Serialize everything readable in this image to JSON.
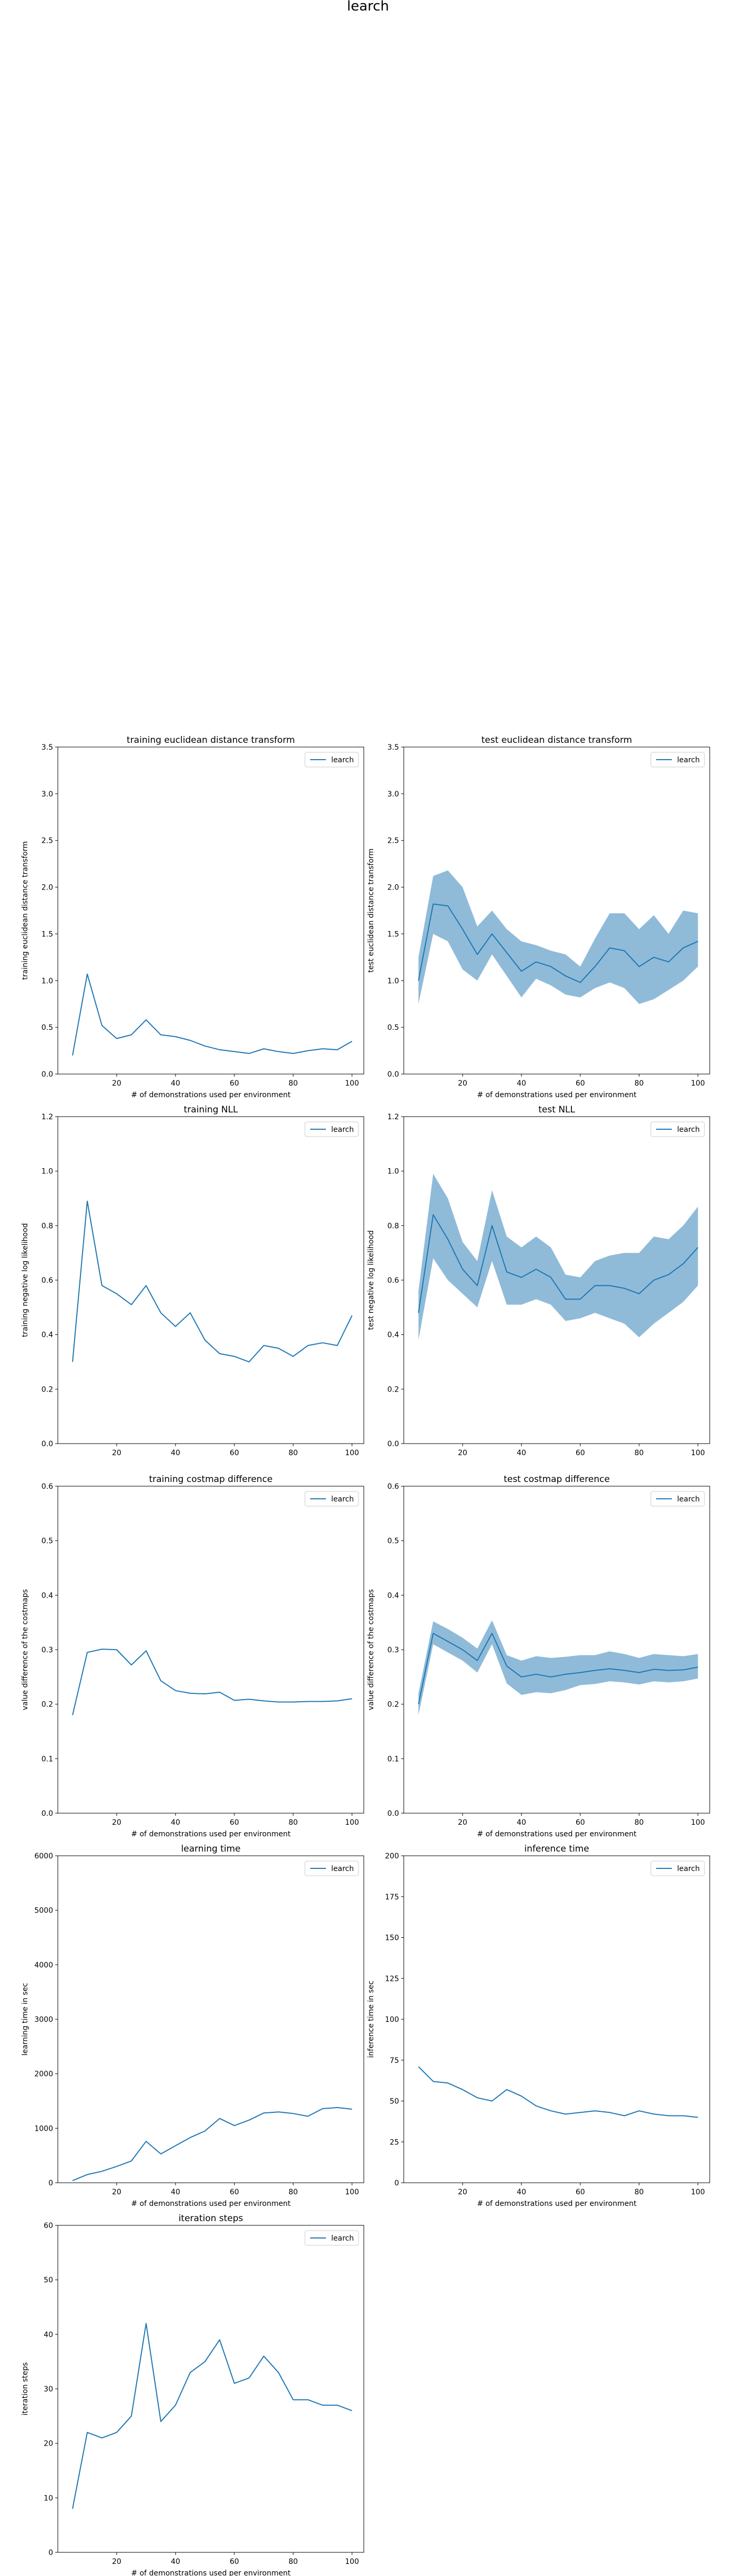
{
  "figure": {
    "suptitle": "learch"
  },
  "colors": {
    "line": "#1f77b4",
    "band": "#1f77b4"
  },
  "chart_data": [
    {
      "type": "line",
      "title": "training euclidean distance transform",
      "xlabel": "# of demonstrations used per environment",
      "ylabel": "training euclidean distance transform",
      "xlim": [
        0,
        104
      ],
      "ylim": [
        0,
        3.5
      ],
      "xticks": [
        20,
        40,
        60,
        80,
        100
      ],
      "yticks": [
        0.0,
        0.5,
        1.0,
        1.5,
        2.0,
        2.5,
        3.0,
        3.5
      ],
      "ytick_decimals": 1,
      "legend": "top-right",
      "series": [
        {
          "name": "learch",
          "x": [
            5,
            10,
            15,
            20,
            25,
            30,
            35,
            40,
            45,
            50,
            55,
            60,
            65,
            70,
            75,
            80,
            85,
            90,
            95,
            100
          ],
          "y": [
            0.2,
            1.07,
            0.52,
            0.38,
            0.42,
            0.58,
            0.42,
            0.4,
            0.36,
            0.3,
            0.26,
            0.24,
            0.22,
            0.27,
            0.24,
            0.22,
            0.25,
            0.27,
            0.26,
            0.35
          ]
        }
      ]
    },
    {
      "type": "line",
      "title": "test euclidean distance transform",
      "xlabel": "# of demonstrations used per environment",
      "ylabel": "test euclidean distance transform",
      "xlim": [
        0,
        104
      ],
      "ylim": [
        0,
        3.5
      ],
      "xticks": [
        20,
        40,
        60,
        80,
        100
      ],
      "yticks": [
        0.0,
        0.5,
        1.0,
        1.5,
        2.0,
        2.5,
        3.0,
        3.5
      ],
      "ytick_decimals": 1,
      "legend": "top-right",
      "series": [
        {
          "name": "learch",
          "x": [
            5,
            10,
            15,
            20,
            25,
            30,
            35,
            40,
            45,
            50,
            55,
            60,
            65,
            70,
            75,
            80,
            85,
            90,
            95,
            100
          ],
          "y": [
            1.0,
            1.82,
            1.8,
            1.55,
            1.28,
            1.5,
            1.3,
            1.1,
            1.2,
            1.15,
            1.05,
            0.98,
            1.15,
            1.35,
            1.32,
            1.15,
            1.25,
            1.2,
            1.35,
            1.42
          ],
          "lower": [
            0.75,
            1.5,
            1.42,
            1.12,
            1.0,
            1.28,
            1.05,
            0.82,
            1.02,
            0.95,
            0.85,
            0.82,
            0.92,
            0.98,
            0.92,
            0.75,
            0.8,
            0.9,
            1.0,
            1.15
          ],
          "upper": [
            1.25,
            2.12,
            2.18,
            2.0,
            1.58,
            1.75,
            1.55,
            1.42,
            1.38,
            1.32,
            1.28,
            1.15,
            1.45,
            1.72,
            1.72,
            1.55,
            1.7,
            1.5,
            1.75,
            1.72
          ]
        }
      ]
    },
    {
      "type": "line",
      "title": "training NLL",
      "xlabel": "",
      "ylabel": "training negative log likelihood",
      "xlim": [
        0,
        104
      ],
      "ylim": [
        0,
        1.2
      ],
      "xticks": [
        20,
        40,
        60,
        80,
        100
      ],
      "yticks": [
        0.0,
        0.2,
        0.4,
        0.6,
        0.8,
        1.0,
        1.2
      ],
      "ytick_decimals": 1,
      "legend": "top-right",
      "series": [
        {
          "name": "learch",
          "x": [
            5,
            10,
            15,
            20,
            25,
            30,
            35,
            40,
            45,
            50,
            55,
            60,
            65,
            70,
            75,
            80,
            85,
            90,
            95,
            100
          ],
          "y": [
            0.3,
            0.89,
            0.58,
            0.55,
            0.51,
            0.58,
            0.48,
            0.43,
            0.48,
            0.38,
            0.33,
            0.32,
            0.3,
            0.36,
            0.35,
            0.32,
            0.36,
            0.37,
            0.36,
            0.47
          ]
        }
      ]
    },
    {
      "type": "line",
      "title": "test NLL",
      "xlabel": "",
      "ylabel": "test negative log likelihood",
      "xlim": [
        0,
        104
      ],
      "ylim": [
        0,
        1.2
      ],
      "xticks": [
        20,
        40,
        60,
        80,
        100
      ],
      "yticks": [
        0.0,
        0.2,
        0.4,
        0.6,
        0.8,
        1.0,
        1.2
      ],
      "ytick_decimals": 1,
      "legend": "top-right",
      "series": [
        {
          "name": "learch",
          "x": [
            5,
            10,
            15,
            20,
            25,
            30,
            35,
            40,
            45,
            50,
            55,
            60,
            65,
            70,
            75,
            80,
            85,
            90,
            95,
            100
          ],
          "y": [
            0.48,
            0.84,
            0.75,
            0.64,
            0.58,
            0.8,
            0.63,
            0.61,
            0.64,
            0.61,
            0.53,
            0.53,
            0.58,
            0.58,
            0.57,
            0.55,
            0.6,
            0.62,
            0.66,
            0.72
          ],
          "lower": [
            0.38,
            0.68,
            0.6,
            0.55,
            0.5,
            0.67,
            0.51,
            0.51,
            0.53,
            0.51,
            0.45,
            0.46,
            0.48,
            0.46,
            0.44,
            0.39,
            0.44,
            0.48,
            0.52,
            0.58
          ],
          "upper": [
            0.56,
            0.99,
            0.9,
            0.74,
            0.67,
            0.93,
            0.76,
            0.72,
            0.76,
            0.72,
            0.62,
            0.61,
            0.67,
            0.69,
            0.7,
            0.7,
            0.76,
            0.75,
            0.8,
            0.87
          ]
        }
      ]
    },
    {
      "type": "line",
      "title": "training costmap difference",
      "xlabel": "# of demonstrations used per environment",
      "ylabel": "value difference of the costmaps",
      "xlim": [
        0,
        104
      ],
      "ylim": [
        0,
        0.6
      ],
      "xticks": [
        20,
        40,
        60,
        80,
        100
      ],
      "yticks": [
        0.0,
        0.1,
        0.2,
        0.3,
        0.4,
        0.5,
        0.6
      ],
      "ytick_decimals": 1,
      "legend": "top-right",
      "series": [
        {
          "name": "learch",
          "x": [
            5,
            10,
            15,
            20,
            25,
            30,
            35,
            40,
            45,
            50,
            55,
            60,
            65,
            70,
            75,
            80,
            85,
            90,
            95,
            100
          ],
          "y": [
            0.18,
            0.295,
            0.301,
            0.3,
            0.272,
            0.298,
            0.243,
            0.225,
            0.22,
            0.219,
            0.222,
            0.207,
            0.209,
            0.206,
            0.204,
            0.204,
            0.205,
            0.205,
            0.206,
            0.21
          ]
        }
      ]
    },
    {
      "type": "line",
      "title": "test costmap difference",
      "xlabel": "# of demonstrations used per environment",
      "ylabel": "value difference of the costmaps",
      "xlim": [
        0,
        104
      ],
      "ylim": [
        0,
        0.6
      ],
      "xticks": [
        20,
        40,
        60,
        80,
        100
      ],
      "yticks": [
        0.0,
        0.1,
        0.2,
        0.3,
        0.4,
        0.5,
        0.6
      ],
      "ytick_decimals": 1,
      "legend": "top-right",
      "series": [
        {
          "name": "learch",
          "x": [
            5,
            10,
            15,
            20,
            25,
            30,
            35,
            40,
            45,
            50,
            55,
            60,
            65,
            70,
            75,
            80,
            85,
            90,
            95,
            100
          ],
          "y": [
            0.2,
            0.33,
            0.315,
            0.3,
            0.28,
            0.33,
            0.27,
            0.25,
            0.255,
            0.25,
            0.255,
            0.258,
            0.262,
            0.265,
            0.262,
            0.258,
            0.264,
            0.262,
            0.263,
            0.268
          ],
          "lower": [
            0.18,
            0.31,
            0.295,
            0.28,
            0.258,
            0.31,
            0.238,
            0.217,
            0.222,
            0.22,
            0.226,
            0.235,
            0.237,
            0.242,
            0.24,
            0.236,
            0.242,
            0.24,
            0.242,
            0.247
          ],
          "upper": [
            0.22,
            0.352,
            0.338,
            0.322,
            0.302,
            0.354,
            0.29,
            0.28,
            0.288,
            0.285,
            0.287,
            0.29,
            0.29,
            0.297,
            0.292,
            0.285,
            0.292,
            0.29,
            0.288,
            0.292
          ]
        }
      ]
    },
    {
      "type": "line",
      "title": "learning time",
      "xlabel": "# of demonstrations used per environment",
      "ylabel": "learning time in sec",
      "xlim": [
        0,
        104
      ],
      "ylim": [
        0,
        6000
      ],
      "xticks": [
        20,
        40,
        60,
        80,
        100
      ],
      "yticks": [
        0,
        1000,
        2000,
        3000,
        4000,
        5000,
        6000
      ],
      "ytick_decimals": 0,
      "legend": "top-right",
      "series": [
        {
          "name": "learch",
          "x": [
            5,
            10,
            15,
            20,
            25,
            30,
            35,
            40,
            45,
            50,
            55,
            60,
            65,
            70,
            75,
            80,
            85,
            90,
            95,
            100
          ],
          "y": [
            40,
            150,
            210,
            300,
            400,
            760,
            530,
            680,
            830,
            950,
            1180,
            1050,
            1150,
            1280,
            1300,
            1270,
            1220,
            1360,
            1380,
            1350
          ]
        }
      ]
    },
    {
      "type": "line",
      "title": "inference time",
      "xlabel": "# of demonstrations used per environment",
      "ylabel": "inference time in sec",
      "xlim": [
        0,
        104
      ],
      "ylim": [
        0,
        200
      ],
      "xticks": [
        20,
        40,
        60,
        80,
        100
      ],
      "yticks": [
        0,
        25,
        50,
        75,
        100,
        125,
        150,
        175,
        200
      ],
      "ytick_decimals": 0,
      "legend": "top-right",
      "series": [
        {
          "name": "learch",
          "x": [
            5,
            10,
            15,
            20,
            25,
            30,
            35,
            40,
            45,
            50,
            55,
            60,
            65,
            70,
            75,
            80,
            85,
            90,
            95,
            100
          ],
          "y": [
            71,
            62,
            61,
            57,
            52,
            50,
            57,
            53,
            47,
            44,
            42,
            43,
            44,
            43,
            41,
            44,
            42,
            41,
            41,
            40
          ]
        }
      ]
    },
    {
      "type": "line",
      "title": "iteration steps",
      "xlabel": "# of demonstrations used per environment",
      "ylabel": "iteration steps",
      "xlim": [
        0,
        104
      ],
      "ylim": [
        0,
        60
      ],
      "xticks": [
        20,
        40,
        60,
        80,
        100
      ],
      "yticks": [
        0,
        10,
        20,
        30,
        40,
        50,
        60
      ],
      "ytick_decimals": 0,
      "legend": "top-right",
      "series": [
        {
          "name": "learch",
          "x": [
            5,
            10,
            15,
            20,
            25,
            30,
            35,
            40,
            45,
            50,
            55,
            60,
            65,
            70,
            75,
            80,
            85,
            90,
            95,
            100
          ],
          "y": [
            8,
            22,
            21,
            22,
            25,
            42,
            24,
            27,
            33,
            35,
            39,
            31,
            32,
            36,
            33,
            28,
            28,
            27,
            27,
            26
          ]
        }
      ]
    }
  ]
}
